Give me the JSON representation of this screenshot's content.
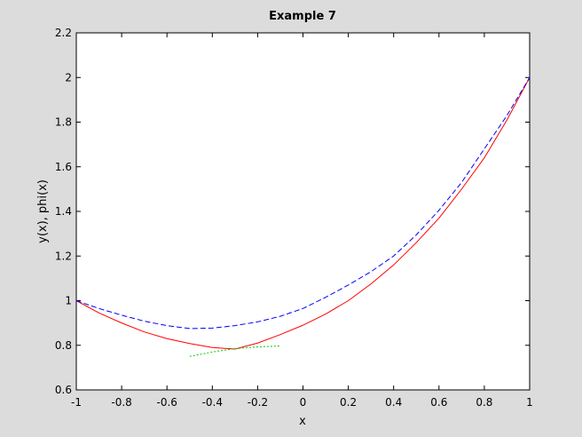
{
  "chart_data": {
    "type": "line",
    "title": "Example 7",
    "x_label": "x",
    "y_label": "y(x), phi(x)",
    "xlim": [
      -1,
      1
    ],
    "xticks": [
      -1,
      -0.8,
      -0.6,
      -0.4,
      -0.2,
      0,
      0.2,
      0.4,
      0.6,
      0.8,
      1
    ],
    "ylim": [
      0.6,
      2.2
    ],
    "yticks": [
      0.6,
      0.8,
      1,
      1.2,
      1.4,
      1.6,
      1.8,
      2,
      2.2
    ],
    "grid": false,
    "series": [
      {
        "color": "#ff0000",
        "dash": "solid",
        "x": [
          -1,
          -0.9,
          -0.8,
          -0.7,
          -0.6,
          -0.5,
          -0.4,
          -0.3,
          -0.2,
          -0.1,
          0,
          0.1,
          0.2,
          0.3,
          0.4,
          0.5,
          0.6,
          0.7,
          0.8,
          0.9,
          1
        ],
        "values": [
          1.0,
          0.945,
          0.9,
          0.86,
          0.83,
          0.808,
          0.79,
          0.783,
          0.81,
          0.848,
          0.89,
          0.94,
          1.0,
          1.075,
          1.16,
          1.26,
          1.37,
          1.5,
          1.64,
          1.81,
          2.0
        ]
      },
      {
        "color": "#0000ff",
        "dash": "dashed",
        "x": [
          -1,
          -0.9,
          -0.8,
          -0.7,
          -0.6,
          -0.5,
          -0.4,
          -0.3,
          -0.2,
          -0.1,
          0,
          0.1,
          0.2,
          0.3,
          0.4,
          0.5,
          0.6,
          0.7,
          0.8,
          0.9,
          1
        ],
        "values": [
          1.0,
          0.965,
          0.935,
          0.908,
          0.888,
          0.875,
          0.877,
          0.888,
          0.905,
          0.93,
          0.965,
          1.015,
          1.07,
          1.13,
          1.2,
          1.295,
          1.405,
          1.53,
          1.68,
          1.83,
          2.0
        ]
      },
      {
        "color": "#00cc00",
        "dash": "dotted",
        "x": [
          -0.5,
          -0.4,
          -0.3,
          -0.2,
          -0.1
        ],
        "values": [
          0.75,
          0.77,
          0.785,
          0.793,
          0.797
        ]
      }
    ]
  }
}
